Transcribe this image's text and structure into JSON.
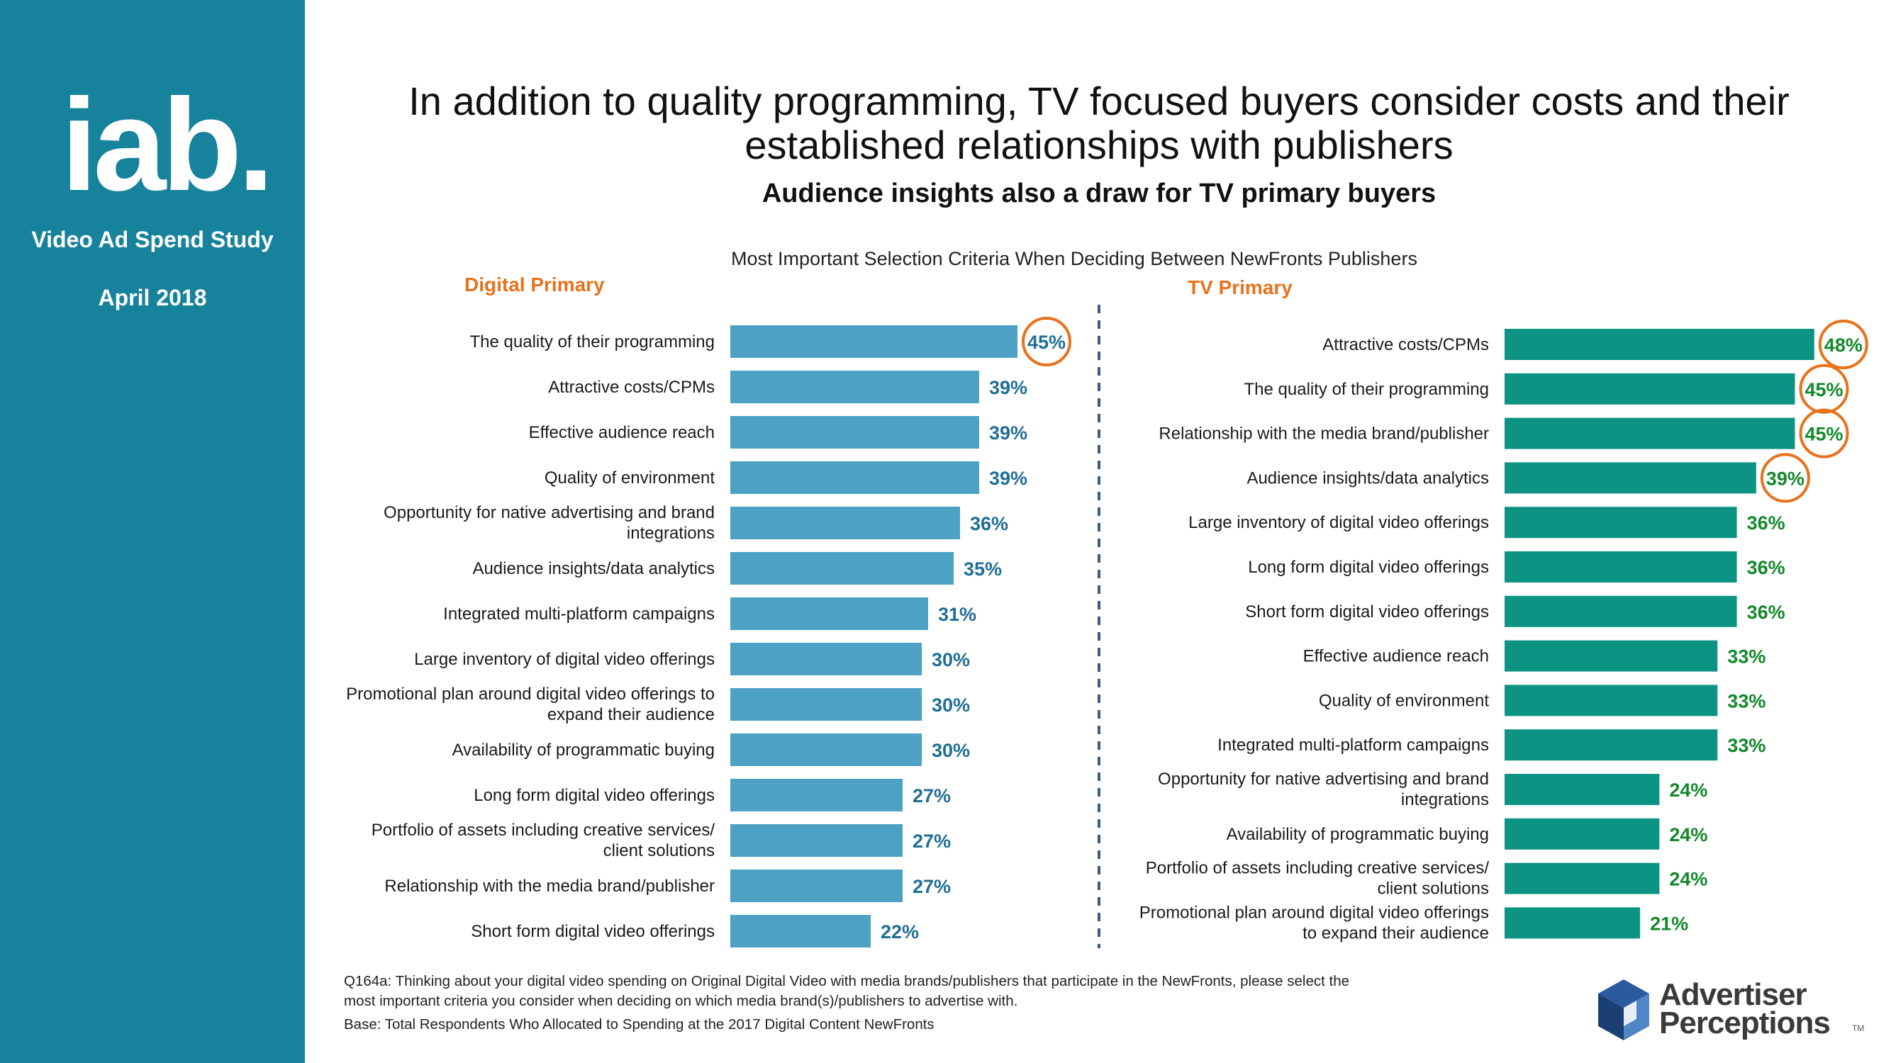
{
  "sidebar": {
    "logo_text": "iab.",
    "study_name": "Video Ad Spend Study",
    "date": "April 2018"
  },
  "header": {
    "title_line1": "In addition to quality programming, TV focused buyers consider costs and their",
    "title_line2": "established relationships with publishers",
    "subtitle": "Audience insights also a draw for TV primary buyers"
  },
  "chart_data": [
    {
      "type": "bar",
      "orientation": "horizontal",
      "title": "Most Important Selection Criteria When Deciding Between NewFronts Publishers",
      "panel_title": "Digital Primary",
      "color": "#4da1c4",
      "label_color": "#1f6f95",
      "unit": "%",
      "highlighted": [
        0
      ],
      "categories": [
        [
          "The quality of their programming"
        ],
        [
          "Attractive costs/CPMs"
        ],
        [
          "Effective audience reach"
        ],
        [
          "Quality of environment"
        ],
        [
          "Opportunity for native advertising and brand",
          "integrations"
        ],
        [
          "Audience insights/data analytics"
        ],
        [
          "Integrated multi-platform campaigns"
        ],
        [
          "Large inventory of digital video offerings"
        ],
        [
          "Promotional plan around digital video offerings to",
          "expand their audience"
        ],
        [
          "Availability of programmatic buying"
        ],
        [
          "Long form digital video offerings"
        ],
        [
          "Portfolio of assets including creative services/",
          "client solutions"
        ],
        [
          "Relationship with the media brand/publisher"
        ],
        [
          "Short form digital video offerings"
        ]
      ],
      "values": [
        45,
        39,
        39,
        39,
        36,
        35,
        31,
        30,
        30,
        30,
        27,
        27,
        27,
        22
      ]
    },
    {
      "type": "bar",
      "orientation": "horizontal",
      "panel_title": "TV Primary",
      "color": "#0d9384",
      "label_color": "#12882a",
      "unit": "%",
      "highlighted": [
        0,
        1,
        2,
        3
      ],
      "categories": [
        [
          "Attractive costs/CPMs"
        ],
        [
          "The quality of their programming"
        ],
        [
          "Relationship with the media brand/publisher"
        ],
        [
          "Audience insights/data analytics"
        ],
        [
          "Large inventory of digital video offerings"
        ],
        [
          "Long form digital video offerings"
        ],
        [
          "Short form digital video offerings"
        ],
        [
          "Effective audience reach"
        ],
        [
          "Quality of environment"
        ],
        [
          "Integrated multi-platform campaigns"
        ],
        [
          "Opportunity for native advertising and brand",
          "integrations"
        ],
        [
          "Availability of programmatic buying"
        ],
        [
          "Portfolio of assets including creative services/",
          "client solutions"
        ],
        [
          "Promotional plan around digital video offerings",
          "to expand their audience"
        ]
      ],
      "values": [
        48,
        45,
        45,
        39,
        36,
        36,
        36,
        33,
        33,
        33,
        24,
        24,
        24,
        21
      ]
    }
  ],
  "footnote": {
    "question_line1": "Q164a:  Thinking about your digital video spending on Original Digital Video with media brands/publishers that participate in the NewFronts, please select the",
    "question_line2": "most important criteria you consider when deciding on which media brand(s)/publishers to advertise with.",
    "base": "Base: Total Respondents Who Allocated to Spending at the 2017 Digital Content NewFronts"
  },
  "brand": {
    "line1": "Advertiser",
    "line2": "Perceptions",
    "tm": "TM"
  },
  "colors": {
    "sidebar": "#17829c",
    "accent_orange": "#e8721c"
  }
}
